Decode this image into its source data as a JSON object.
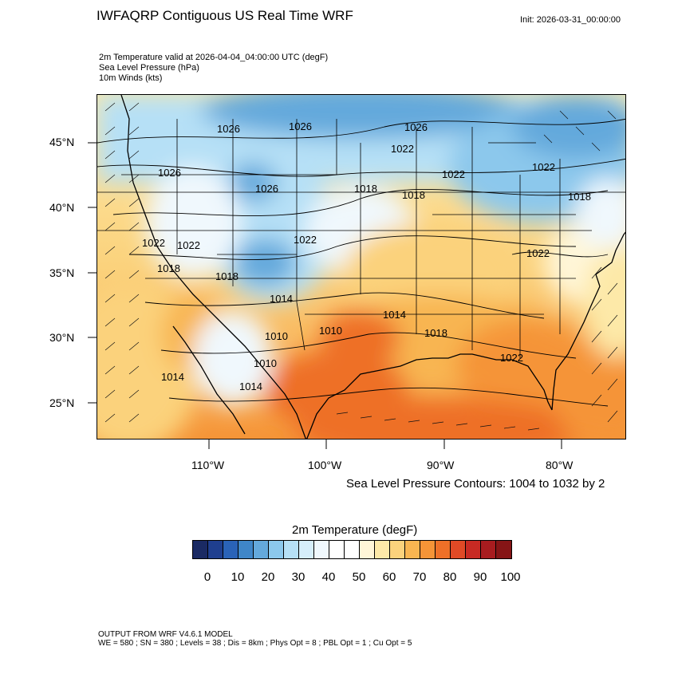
{
  "header": {
    "title": "IWFAQRP Contiguous US Real Time WRF",
    "init": "Init: 2026-03-31_00:00:00",
    "subtitles": [
      "2m Temperature valid at 2026-04-04_04:00:00 UTC   (degF)",
      "Sea Level Pressure   (hPa)",
      "10m Winds   (kts)"
    ]
  },
  "map": {
    "latitude_labels": [
      "45°N",
      "40°N",
      "35°N",
      "30°N",
      "25°N"
    ],
    "longitude_labels": [
      "110°W",
      "100°W",
      "90°W",
      "80°W"
    ],
    "pressure_contour_labels": [
      "1026",
      "1026",
      "1026",
      "1022",
      "1026",
      "1018",
      "1018",
      "1022",
      "1022",
      "1018",
      "1026",
      "1022",
      "1022",
      "1018",
      "1022",
      "1022",
      "1014",
      "1014",
      "1018",
      "1010",
      "1010",
      "1018",
      "1022",
      "1010",
      "1014",
      "1014"
    ],
    "contour_note": "Sea Level Pressure Contours: 1004 to 1032 by 2",
    "colors": {
      "coast": "#000000",
      "state_lines": "#000000",
      "contour": "#000000"
    }
  },
  "colorbar": {
    "title": "2m Temperature  (degF)",
    "colors": [
      "#1a2a63",
      "#1f3f8f",
      "#2a63b8",
      "#3f86c8",
      "#64a9dc",
      "#8cc8ec",
      "#b6e0f6",
      "#d6eefa",
      "#f0f8fd",
      "#ffffff",
      "#ffffff",
      "#fff6d8",
      "#fde9a8",
      "#fbd27c",
      "#f8b551",
      "#f59437",
      "#ee7028",
      "#e04a26",
      "#c82a23",
      "#a81c1f",
      "#861516"
    ],
    "labels": [
      "0",
      "10",
      "20",
      "30",
      "40",
      "50",
      "60",
      "70",
      "80",
      "90",
      "100"
    ]
  },
  "footer": {
    "line1": "OUTPUT FROM WRF V4.6.1 MODEL",
    "line2": "WE = 580 ; SN = 380 ; Levels = 38 ; Dis = 8km ; Phys Opt = 8 ; PBL Opt = 1 ; Cu Opt = 5"
  }
}
